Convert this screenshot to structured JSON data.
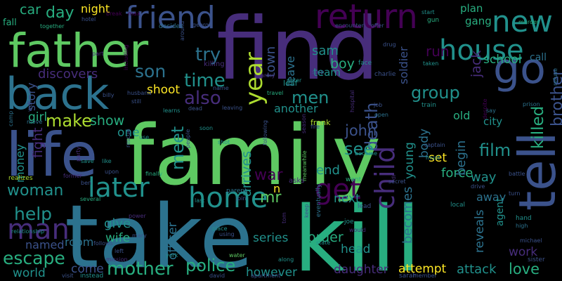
{
  "palette": {
    "background": "#000000",
    "dark_purple": "#440154",
    "purple": "#472d7b",
    "indigo": "#3b528b",
    "blue": "#2c728e",
    "teal": "#21918c",
    "sea_green": "#28ae80",
    "green": "#5ec962",
    "lime": "#addc30",
    "yellow": "#fde725"
  },
  "words": [
    {
      "text": "family",
      "color": "#5ec962"
    },
    {
      "text": "find",
      "color": "#472d7b"
    },
    {
      "text": "take",
      "color": "#2c728e"
    },
    {
      "text": "kill",
      "color": "#28ae80"
    },
    {
      "text": "father",
      "color": "#5ec962"
    },
    {
      "text": "back",
      "color": "#2c728e"
    },
    {
      "text": "life",
      "color": "#3b528b"
    },
    {
      "text": "go",
      "color": "#3b528b"
    },
    {
      "text": "tell",
      "color": "#3b528b"
    },
    {
      "text": "friend",
      "color": "#3b528b"
    },
    {
      "text": "return",
      "color": "#440154"
    },
    {
      "text": "new",
      "color": "#21918c"
    },
    {
      "text": "house",
      "color": "#21918c"
    },
    {
      "text": "home",
      "color": "#21918c"
    },
    {
      "text": "get",
      "color": "#440154"
    },
    {
      "text": "later",
      "color": "#21918c"
    },
    {
      "text": "man",
      "color": "#472d7b"
    },
    {
      "text": "woman",
      "color": "#21918c"
    },
    {
      "text": "year",
      "color": "#addc30"
    },
    {
      "text": "child",
      "color": "#472d7b"
    },
    {
      "text": "time",
      "color": "#21918c"
    },
    {
      "text": "try",
      "color": "#2c728e"
    },
    {
      "text": "son",
      "color": "#2c728e"
    },
    {
      "text": "also",
      "color": "#472d7b"
    },
    {
      "text": "men",
      "color": "#21918c"
    },
    {
      "text": "death",
      "color": "#3b528b"
    },
    {
      "text": "group",
      "color": "#21918c"
    },
    {
      "text": "film",
      "color": "#21918c"
    },
    {
      "text": "killed",
      "color": "#28ae80"
    },
    {
      "text": "brother",
      "color": "#3b528b"
    },
    {
      "text": "make",
      "color": "#addc30"
    },
    {
      "text": "show",
      "color": "#28ae80"
    },
    {
      "text": "meet",
      "color": "#21918c"
    },
    {
      "text": "see",
      "color": "#21918c"
    },
    {
      "text": "john",
      "color": "#3b528b"
    },
    {
      "text": "war",
      "color": "#440154"
    },
    {
      "text": "help",
      "color": "#21918c"
    },
    {
      "text": "escape",
      "color": "#28ae80"
    },
    {
      "text": "mother",
      "color": "#28ae80"
    },
    {
      "text": "police",
      "color": "#28ae80"
    },
    {
      "text": "love",
      "color": "#28ae80"
    },
    {
      "text": "day",
      "color": "#28ae80"
    },
    {
      "text": "car",
      "color": "#28ae80"
    },
    {
      "text": "night",
      "color": "#fde725"
    },
    {
      "text": "plan",
      "color": "#28ae80"
    },
    {
      "text": "gang",
      "color": "#28ae80"
    },
    {
      "text": "school",
      "color": "#28ae80"
    },
    {
      "text": "run",
      "color": "#440154"
    },
    {
      "text": "call",
      "color": "#2c728e"
    },
    {
      "text": "town",
      "color": "#3b528b"
    },
    {
      "text": "sam",
      "color": "#21918c"
    },
    {
      "text": "boy",
      "color": "#28ae80"
    },
    {
      "text": "leave",
      "color": "#2c728e"
    },
    {
      "text": "soldier",
      "color": "#3b528b"
    },
    {
      "text": "jack",
      "color": "#472d7b"
    },
    {
      "text": "discovers",
      "color": "#472d7b"
    },
    {
      "text": "shoot",
      "color": "#fde725"
    },
    {
      "text": "story",
      "color": "#3b528b"
    },
    {
      "text": "girl",
      "color": "#28ae80"
    },
    {
      "text": "fight",
      "color": "#472d7b"
    },
    {
      "text": "money",
      "color": "#21918c"
    },
    {
      "text": "one",
      "color": "#21918c"
    },
    {
      "text": "arrives",
      "color": "#21918c"
    },
    {
      "text": "end",
      "color": "#21918c"
    },
    {
      "text": "young",
      "color": "#21918c"
    },
    {
      "text": "body",
      "color": "#2c728e"
    },
    {
      "text": "another",
      "color": "#21918c"
    },
    {
      "text": "old",
      "color": "#28ae80"
    },
    {
      "text": "city",
      "color": "#21918c"
    },
    {
      "text": "way",
      "color": "#21918c"
    },
    {
      "text": "away",
      "color": "#2c728e"
    },
    {
      "text": "force",
      "color": "#28ae80"
    },
    {
      "text": "set",
      "color": "#fde725"
    },
    {
      "text": "next",
      "color": "#21918c"
    },
    {
      "text": "begin",
      "color": "#2c728e"
    },
    {
      "text": "reveals",
      "color": "#2c728e"
    },
    {
      "text": "give",
      "color": "#21918c"
    },
    {
      "text": "wife",
      "color": "#28ae80"
    },
    {
      "text": "officer",
      "color": "#2c728e"
    },
    {
      "text": "named",
      "color": "#3b528b"
    },
    {
      "text": "room",
      "color": "#2c728e"
    },
    {
      "text": "come",
      "color": "#3b528b"
    },
    {
      "text": "world",
      "color": "#21918c"
    },
    {
      "text": "series",
      "color": "#21918c"
    },
    {
      "text": "order",
      "color": "#28ae80"
    },
    {
      "text": "head",
      "color": "#21918c"
    },
    {
      "text": "however",
      "color": "#21918c"
    },
    {
      "text": "daughter",
      "color": "#472d7b"
    },
    {
      "text": "attempt",
      "color": "#fde725"
    },
    {
      "text": "attack",
      "color": "#21918c"
    },
    {
      "text": "becomes",
      "color": "#2c728e"
    },
    {
      "text": "work",
      "color": "#472d7b"
    },
    {
      "text": "agent",
      "color": "#21918c"
    },
    {
      "text": "mr",
      "color": "#5ec962"
    },
    {
      "text": "n",
      "color": "#fde725"
    },
    {
      "text": "asks",
      "color": "#472d7b"
    },
    {
      "text": "fall",
      "color": "#28ae80"
    },
    {
      "text": "together",
      "color": "#28ae80"
    },
    {
      "text": "hotel",
      "color": "#3b528b"
    },
    {
      "text": "break",
      "color": "#440154"
    },
    {
      "text": "max",
      "color": "#440154"
    },
    {
      "text": "decides",
      "color": "#2c728e"
    },
    {
      "text": "george",
      "color": "#3b528b"
    },
    {
      "text": "peter",
      "color": "#21918c"
    },
    {
      "text": "encounter",
      "color": "#3b528b"
    },
    {
      "text": "offer",
      "color": "#3b528b"
    },
    {
      "text": "start",
      "color": "#21918c"
    },
    {
      "text": "gun",
      "color": "#28ae80"
    },
    {
      "text": "murder",
      "color": "#28ae80"
    },
    {
      "text": "leaf",
      "color": "#21918c"
    },
    {
      "text": "team",
      "color": "#21918c"
    },
    {
      "text": "drug",
      "color": "#3b528b"
    },
    {
      "text": "charlie",
      "color": "#3b528b"
    },
    {
      "text": "face",
      "color": "#21918c"
    },
    {
      "text": "taken",
      "color": "#21918c"
    },
    {
      "text": "stop",
      "color": "#3b528b"
    },
    {
      "text": "army",
      "color": "#472d7b"
    },
    {
      "text": "killing",
      "color": "#472d7b"
    },
    {
      "text": "part",
      "color": "#472d7b"
    },
    {
      "text": "including",
      "color": "#440154"
    },
    {
      "text": "around",
      "color": "#3b528b"
    },
    {
      "text": "name",
      "color": "#3b528b"
    },
    {
      "text": "travel",
      "color": "#28ae80"
    },
    {
      "text": "hospital",
      "color": "#472d7b"
    },
    {
      "text": "despite",
      "color": "#440154"
    },
    {
      "text": "refuse",
      "color": "#2c728e"
    },
    {
      "text": "prison",
      "color": "#2c728e"
    },
    {
      "text": "say",
      "color": "#2c728e"
    },
    {
      "text": "train",
      "color": "#21918c"
    },
    {
      "text": "job",
      "color": "#3b528b"
    },
    {
      "text": "open",
      "color": "#2c728e"
    },
    {
      "text": "husband",
      "color": "#3b528b"
    },
    {
      "text": "still",
      "color": "#3b528b"
    },
    {
      "text": "billy",
      "color": "#3b528b"
    },
    {
      "text": "learns",
      "color": "#21918c"
    },
    {
      "text": "dead",
      "color": "#3b528b"
    },
    {
      "text": "leaving",
      "color": "#3b528b"
    },
    {
      "text": "well",
      "color": "#3b528b"
    },
    {
      "text": "move",
      "color": "#2c728e"
    },
    {
      "text": "camp",
      "color": "#2c728e"
    },
    {
      "text": "people",
      "color": "#3b528b"
    },
    {
      "text": "soon",
      "color": "#21918c"
    },
    {
      "text": "season",
      "color": "#472d7b"
    },
    {
      "text": "fire",
      "color": "#3b528b"
    },
    {
      "text": "frank",
      "color": "#addc30"
    },
    {
      "text": "battle",
      "color": "#3b528b"
    },
    {
      "text": "rescue",
      "color": "#3b528b"
    },
    {
      "text": "use",
      "color": "#21918c"
    },
    {
      "text": "shot",
      "color": "#21918c"
    },
    {
      "text": "following",
      "color": "#3b528b"
    },
    {
      "text": "become",
      "color": "#21918c"
    },
    {
      "text": "must",
      "color": "#21918c"
    },
    {
      "text": "captain",
      "color": "#3b528b"
    },
    {
      "text": "party",
      "color": "#472d7b"
    },
    {
      "text": "save",
      "color": "#21918c"
    },
    {
      "text": "like",
      "color": "#21918c"
    },
    {
      "text": "upon",
      "color": "#3b528b"
    },
    {
      "text": "finally",
      "color": "#28ae80"
    },
    {
      "text": "parent",
      "color": "#2c728e"
    },
    {
      "text": "meanwhile",
      "color": "#5ec962"
    },
    {
      "text": "want",
      "color": "#28ae80"
    },
    {
      "text": "secret",
      "color": "#3b528b"
    },
    {
      "text": "drive",
      "color": "#3b528b"
    },
    {
      "text": "turn",
      "color": "#3b528b"
    },
    {
      "text": "local",
      "color": "#21918c"
    },
    {
      "text": "realizes",
      "color": "#addc30"
    },
    {
      "text": "former",
      "color": "#472d7b"
    },
    {
      "text": "ben",
      "color": "#3b528b"
    },
    {
      "text": "several",
      "color": "#28ae80"
    },
    {
      "text": "relationship",
      "color": "#21918c"
    },
    {
      "text": "power",
      "color": "#472d7b"
    },
    {
      "text": "last",
      "color": "#21918c"
    },
    {
      "text": "join",
      "color": "#3b528b"
    },
    {
      "text": "eventually",
      "color": "#2c728e"
    },
    {
      "text": "lead",
      "color": "#3b528b"
    },
    {
      "text": "dr",
      "color": "#472d7b"
    },
    {
      "text": "keep",
      "color": "#3b528b"
    },
    {
      "text": "tom",
      "color": "#472d7b"
    },
    {
      "text": "joe",
      "color": "#21918c"
    },
    {
      "text": "would",
      "color": "#472d7b"
    },
    {
      "text": "hand",
      "color": "#21918c"
    },
    {
      "text": "high",
      "color": "#2c728e"
    },
    {
      "text": "michael",
      "color": "#3b528b"
    },
    {
      "text": "place",
      "color": "#21918c"
    },
    {
      "text": "using",
      "color": "#3b528b"
    },
    {
      "text": "mary",
      "color": "#3b528b"
    },
    {
      "text": "follows",
      "color": "#3b528b"
    },
    {
      "text": "left",
      "color": "#3b528b"
    },
    {
      "text": "york",
      "color": "#21918c"
    },
    {
      "text": "mission",
      "color": "#472d7b"
    },
    {
      "text": "water",
      "color": "#5ec962"
    },
    {
      "text": "david",
      "color": "#3b528b"
    },
    {
      "text": "apartment",
      "color": "#3b528b"
    },
    {
      "text": "along",
      "color": "#21918c"
    },
    {
      "text": "visit",
      "color": "#3b528b"
    },
    {
      "text": "instead",
      "color": "#21918c"
    },
    {
      "text": "sarah",
      "color": "#3b528b"
    },
    {
      "text": "member",
      "color": "#3b528b"
    },
    {
      "text": "sister",
      "color": "#3b528b"
    },
    {
      "text": "state",
      "color": "#21918c"
    }
  ]
}
